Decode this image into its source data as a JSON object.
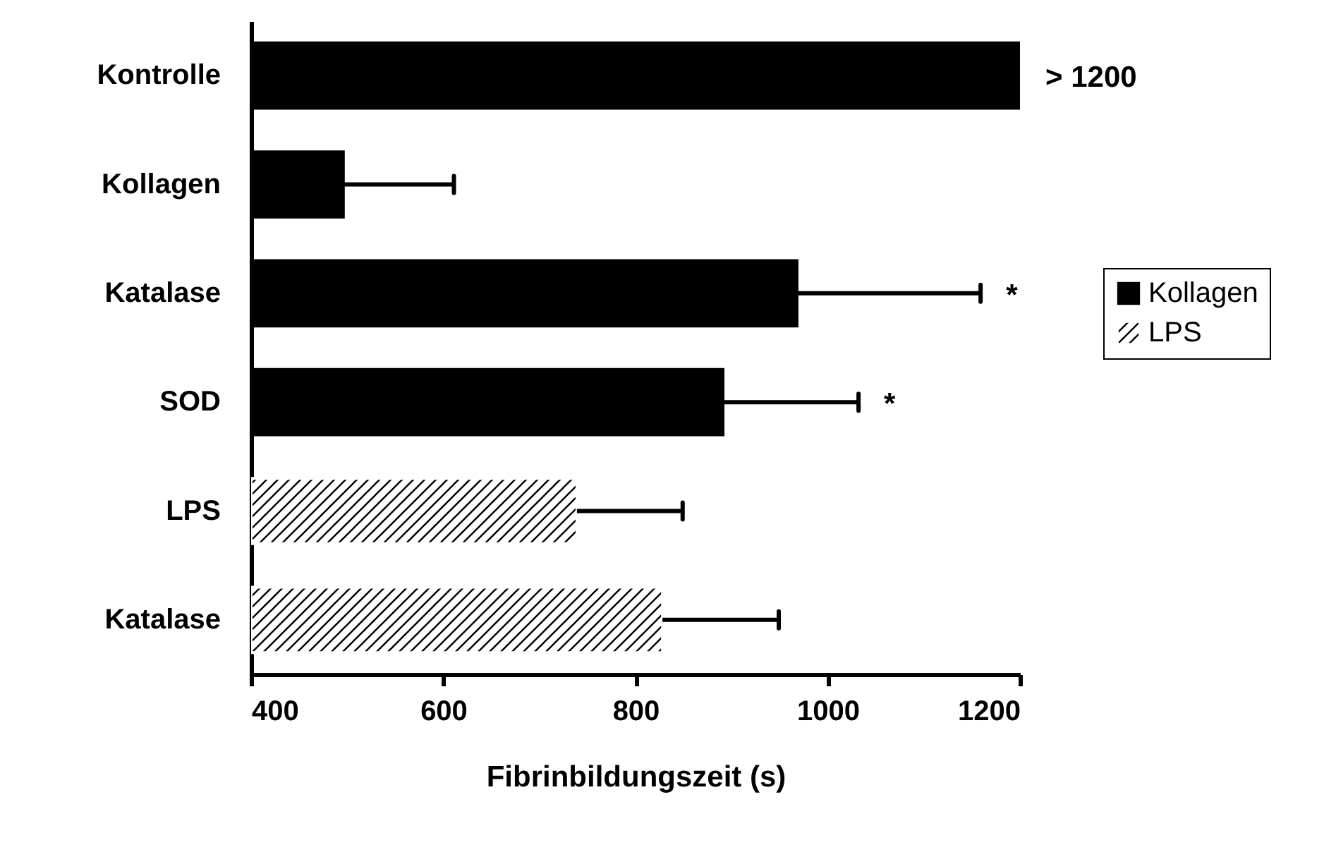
{
  "chart_data": {
    "type": "bar",
    "orientation": "horizontal",
    "xlabel": "Fibrinbildungszeit (s)",
    "categories": [
      "Kontrolle",
      "Kollagen",
      "Katalase",
      "SOD",
      "LPS",
      "Katalase"
    ],
    "series": [
      {
        "name": "Kollagen",
        "color": "#000000",
        "values": [
          1200,
          496,
          968,
          891,
          null,
          null
        ],
        "errors": [
          null,
          115,
          191,
          141,
          null,
          null
        ]
      },
      {
        "name": "LPS",
        "color": "#ffffff",
        "values": [
          null,
          null,
          null,
          null,
          739,
          828
        ],
        "errors": [
          null,
          null,
          null,
          null,
          110,
          121
        ]
      }
    ],
    "xlim": [
      400,
      1200
    ],
    "xticks": [
      400,
      600,
      800,
      1000,
      1200
    ],
    "legend": "right",
    "grid": false,
    "annotations": [
      {
        "text": "> 1200",
        "x": 1200,
        "y": "Kontrolle"
      },
      {
        "text": "*",
        "x": 1159,
        "y": "Katalase"
      },
      {
        "text": "*",
        "x": 1032,
        "y": "SOD"
      }
    ]
  }
}
